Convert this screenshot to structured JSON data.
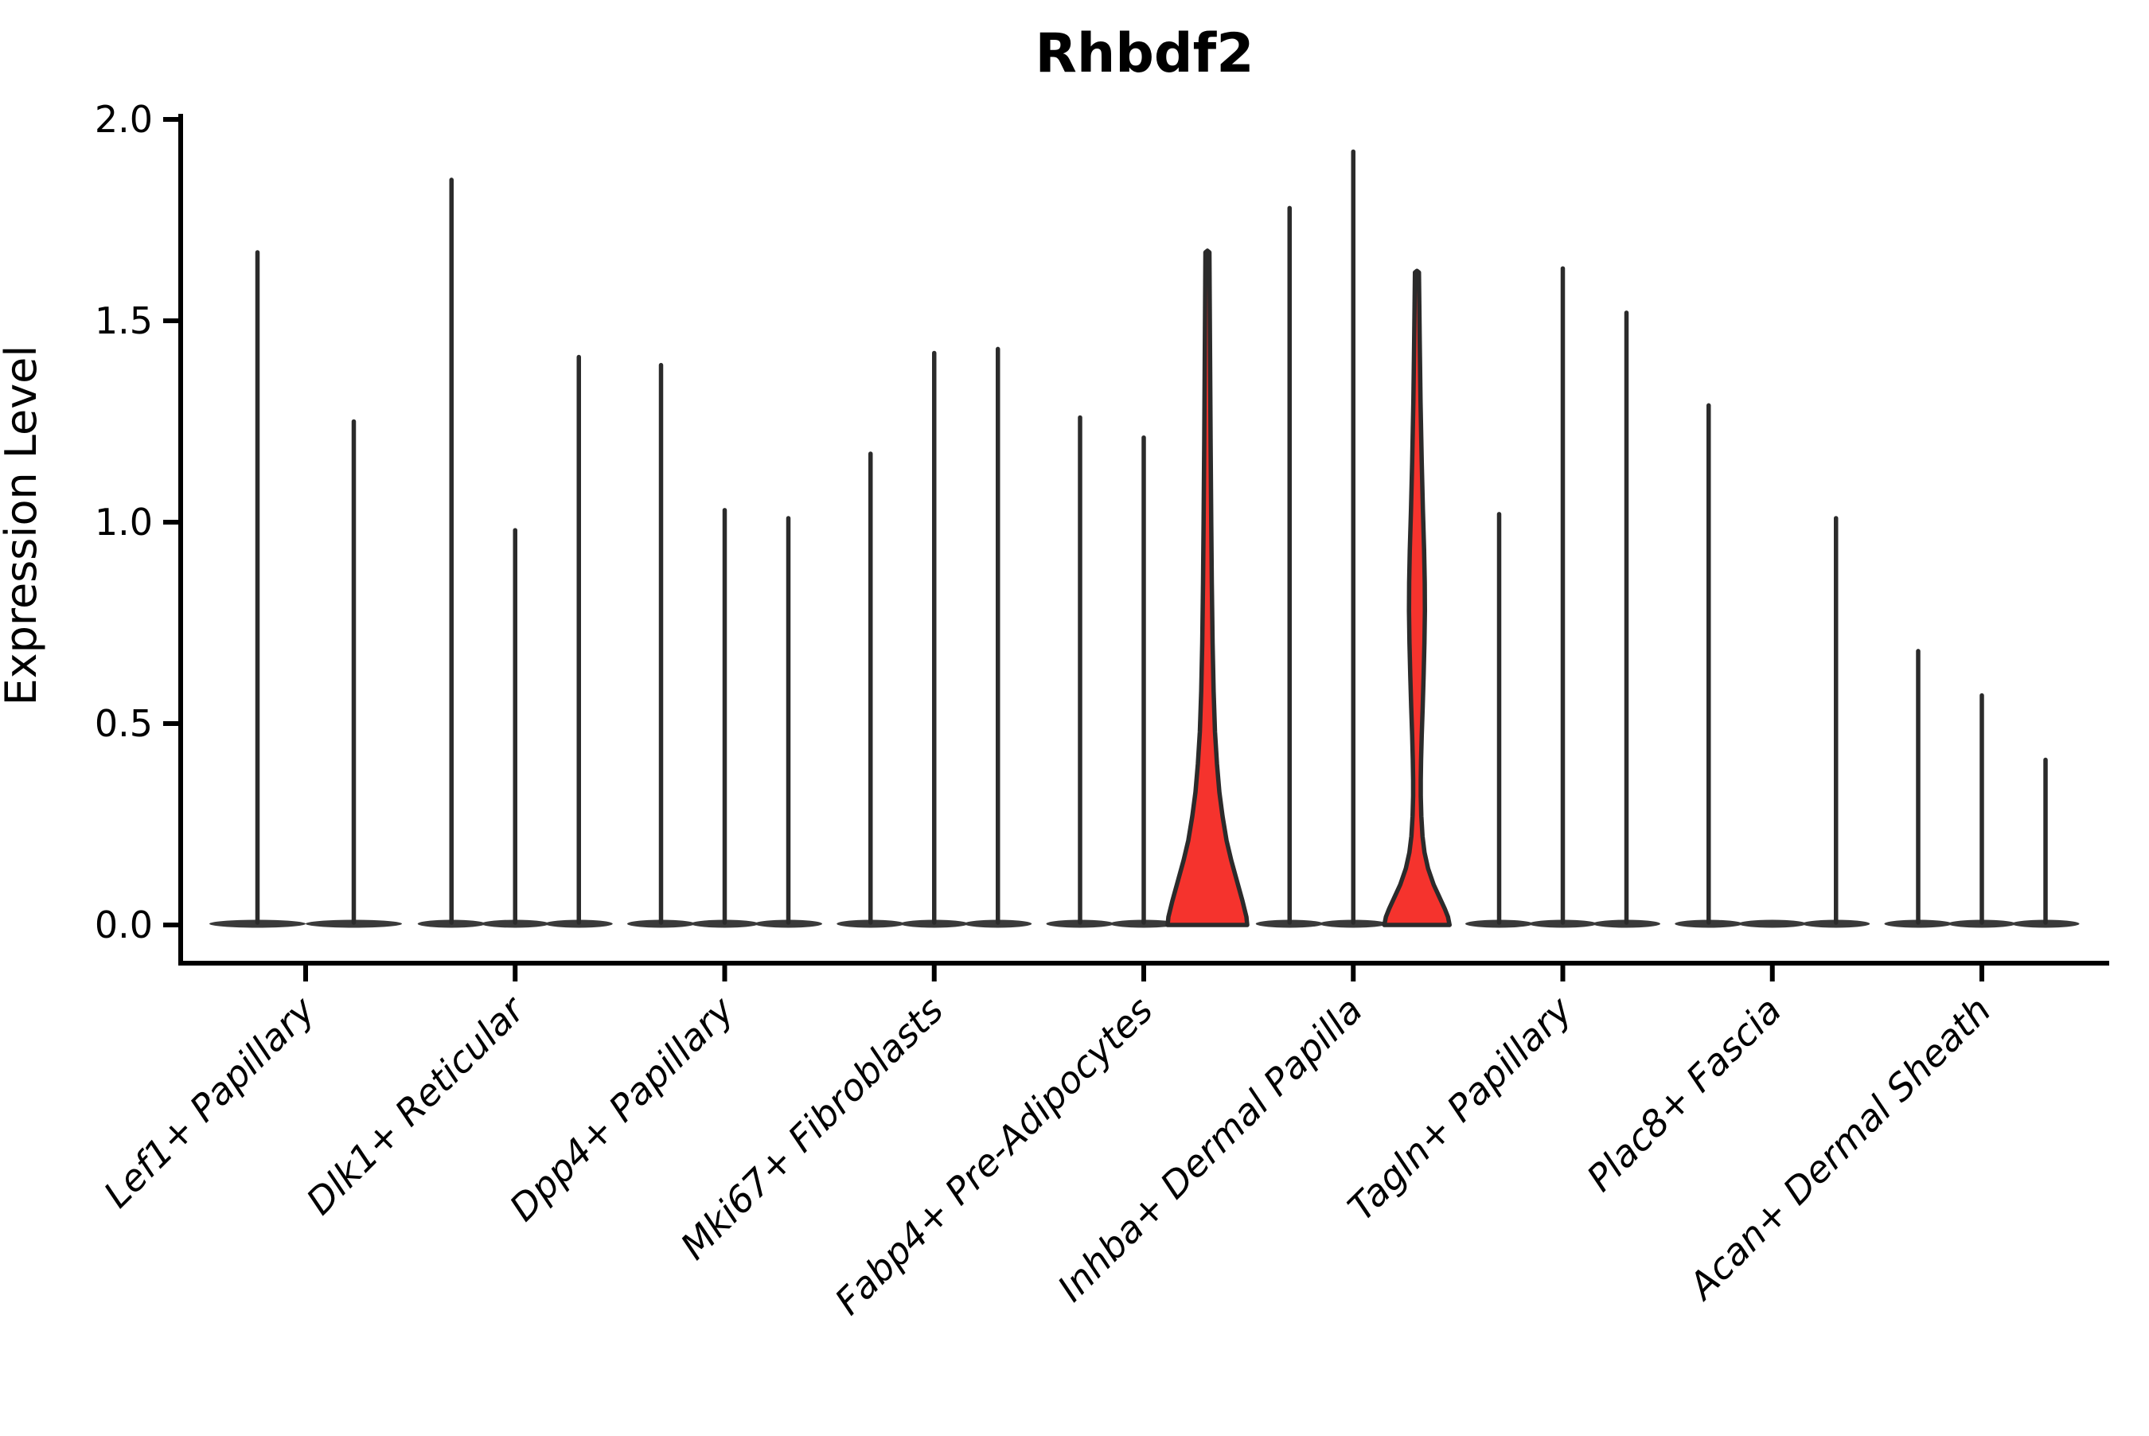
{
  "figure": {
    "background": "#ffffff"
  },
  "chart_data": {
    "type": "violin",
    "title": "Rhbdf2",
    "xlabel": "",
    "ylabel": "Expression Level",
    "ylim": [
      0.0,
      2.0
    ],
    "yticks": [
      "0.0",
      "0.5",
      "1.0",
      "1.5",
      "2.0"
    ],
    "ytick_values": [
      0.0,
      0.5,
      1.0,
      1.5,
      2.0
    ],
    "x_tick_rotation_deg": 45,
    "grid": "off",
    "legend": "none",
    "colors": {
      "highlight_fill": "#f5332d",
      "violin_stroke": "#2b2b2b",
      "base_fill": "#3a3a3a",
      "axis": "#000000"
    },
    "groups": [
      {
        "label": "Lef1+ Papillary",
        "violins": [
          {
            "max": 1.67,
            "highlight": false
          },
          {
            "max": 1.25,
            "highlight": false
          }
        ]
      },
      {
        "label": "Dlk1+ Reticular",
        "violins": [
          {
            "max": 1.85,
            "highlight": false
          },
          {
            "max": 0.98,
            "highlight": false
          },
          {
            "max": 1.41,
            "highlight": false
          }
        ]
      },
      {
        "label": "Dpp4+ Papillary",
        "violins": [
          {
            "max": 1.39,
            "highlight": false
          },
          {
            "max": 1.03,
            "highlight": false
          },
          {
            "max": 1.01,
            "highlight": false
          }
        ]
      },
      {
        "label": "Mki67+ Fibroblasts",
        "violins": [
          {
            "max": 1.17,
            "highlight": false
          },
          {
            "max": 1.42,
            "highlight": false
          },
          {
            "max": 1.43,
            "highlight": false
          }
        ]
      },
      {
        "label": "Fabp4+ Pre-Adipocytes",
        "violins": [
          {
            "max": 1.26,
            "highlight": false
          },
          {
            "max": 1.21,
            "highlight": false
          },
          {
            "max": 1.67,
            "highlight": true,
            "profile": [
              [
                1.67,
                2.5
              ],
              [
                1.45,
                3.2
              ],
              [
                1.2,
                4.0
              ],
              [
                1.0,
                4.8
              ],
              [
                0.85,
                5.5
              ],
              [
                0.7,
                6.5
              ],
              [
                0.58,
                7.8
              ],
              [
                0.48,
                9.5
              ],
              [
                0.4,
                12
              ],
              [
                0.33,
                15
              ],
              [
                0.27,
                19
              ],
              [
                0.21,
                24
              ],
              [
                0.16,
                30
              ],
              [
                0.11,
                37
              ],
              [
                0.06,
                44
              ],
              [
                0.02,
                49
              ],
              [
                0,
                50
              ]
            ]
          }
        ]
      },
      {
        "label": "Inhba+ Dermal Papilla",
        "violins": [
          {
            "max": 1.78,
            "highlight": false
          },
          {
            "max": 1.92,
            "highlight": false
          },
          {
            "max": 1.62,
            "highlight": true,
            "profile": [
              [
                1.62,
                2.5
              ],
              [
                1.45,
                3.5
              ],
              [
                1.3,
                4.5
              ],
              [
                1.15,
                6
              ],
              [
                1.03,
                7.5
              ],
              [
                0.93,
                9
              ],
              [
                0.85,
                9.8
              ],
              [
                0.78,
                10
              ],
              [
                0.7,
                9.4
              ],
              [
                0.62,
                8.4
              ],
              [
                0.54,
                7.2
              ],
              [
                0.47,
                6
              ],
              [
                0.41,
                5.2
              ],
              [
                0.36,
                4.8
              ],
              [
                0.32,
                4.8
              ],
              [
                0.27,
                5.5
              ],
              [
                0.22,
                7
              ],
              [
                0.18,
                9.5
              ],
              [
                0.14,
                14
              ],
              [
                0.1,
                21
              ],
              [
                0.07,
                28
              ],
              [
                0.04,
                35
              ],
              [
                0.02,
                39
              ],
              [
                0,
                41
              ]
            ]
          }
        ]
      },
      {
        "label": "Tagln+ Papillary",
        "violins": [
          {
            "max": 1.02,
            "highlight": false
          },
          {
            "max": 1.63,
            "highlight": false
          },
          {
            "max": 1.52,
            "highlight": false
          }
        ]
      },
      {
        "label": "Plac8+ Fascia",
        "violins": [
          {
            "max": 1.29,
            "highlight": false
          },
          {
            "max": 0.0,
            "highlight": false
          },
          {
            "max": 1.01,
            "highlight": false
          }
        ]
      },
      {
        "label": "Acan+ Dermal Sheath",
        "violins": [
          {
            "max": 0.68,
            "highlight": false
          },
          {
            "max": 0.57,
            "highlight": false
          },
          {
            "max": 0.41,
            "highlight": false
          }
        ]
      }
    ]
  }
}
